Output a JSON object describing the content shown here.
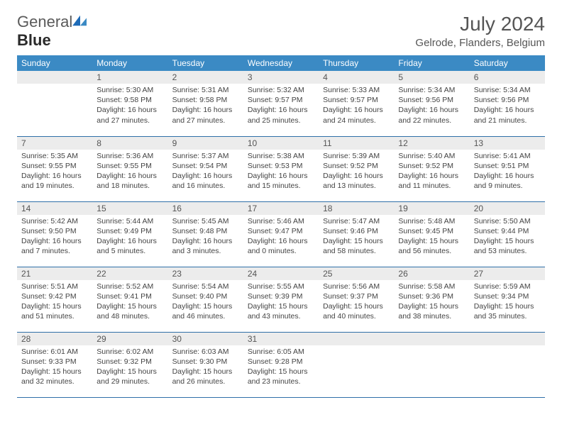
{
  "brand": {
    "part1": "General",
    "part2": "Blue"
  },
  "title": "July 2024",
  "location": "Gelrode, Flanders, Belgium",
  "colors": {
    "header_bg": "#3b8ac4",
    "header_text": "#ffffff",
    "row_divider": "#2f6fa8",
    "daynum_bg": "#ececec",
    "daynum_text": "#555555",
    "body_text": "#444444",
    "title_text": "#555555",
    "logo_accent": "#1e6bb8"
  },
  "weekdays": [
    "Sunday",
    "Monday",
    "Tuesday",
    "Wednesday",
    "Thursday",
    "Friday",
    "Saturday"
  ],
  "start_offset": 1,
  "days": [
    {
      "n": 1,
      "sunrise": "5:30 AM",
      "sunset": "9:58 PM",
      "daylight": "16 hours and 27 minutes."
    },
    {
      "n": 2,
      "sunrise": "5:31 AM",
      "sunset": "9:58 PM",
      "daylight": "16 hours and 27 minutes."
    },
    {
      "n": 3,
      "sunrise": "5:32 AM",
      "sunset": "9:57 PM",
      "daylight": "16 hours and 25 minutes."
    },
    {
      "n": 4,
      "sunrise": "5:33 AM",
      "sunset": "9:57 PM",
      "daylight": "16 hours and 24 minutes."
    },
    {
      "n": 5,
      "sunrise": "5:34 AM",
      "sunset": "9:56 PM",
      "daylight": "16 hours and 22 minutes."
    },
    {
      "n": 6,
      "sunrise": "5:34 AM",
      "sunset": "9:56 PM",
      "daylight": "16 hours and 21 minutes."
    },
    {
      "n": 7,
      "sunrise": "5:35 AM",
      "sunset": "9:55 PM",
      "daylight": "16 hours and 19 minutes."
    },
    {
      "n": 8,
      "sunrise": "5:36 AM",
      "sunset": "9:55 PM",
      "daylight": "16 hours and 18 minutes."
    },
    {
      "n": 9,
      "sunrise": "5:37 AM",
      "sunset": "9:54 PM",
      "daylight": "16 hours and 16 minutes."
    },
    {
      "n": 10,
      "sunrise": "5:38 AM",
      "sunset": "9:53 PM",
      "daylight": "16 hours and 15 minutes."
    },
    {
      "n": 11,
      "sunrise": "5:39 AM",
      "sunset": "9:52 PM",
      "daylight": "16 hours and 13 minutes."
    },
    {
      "n": 12,
      "sunrise": "5:40 AM",
      "sunset": "9:52 PM",
      "daylight": "16 hours and 11 minutes."
    },
    {
      "n": 13,
      "sunrise": "5:41 AM",
      "sunset": "9:51 PM",
      "daylight": "16 hours and 9 minutes."
    },
    {
      "n": 14,
      "sunrise": "5:42 AM",
      "sunset": "9:50 PM",
      "daylight": "16 hours and 7 minutes."
    },
    {
      "n": 15,
      "sunrise": "5:44 AM",
      "sunset": "9:49 PM",
      "daylight": "16 hours and 5 minutes."
    },
    {
      "n": 16,
      "sunrise": "5:45 AM",
      "sunset": "9:48 PM",
      "daylight": "16 hours and 3 minutes."
    },
    {
      "n": 17,
      "sunrise": "5:46 AM",
      "sunset": "9:47 PM",
      "daylight": "16 hours and 0 minutes."
    },
    {
      "n": 18,
      "sunrise": "5:47 AM",
      "sunset": "9:46 PM",
      "daylight": "15 hours and 58 minutes."
    },
    {
      "n": 19,
      "sunrise": "5:48 AM",
      "sunset": "9:45 PM",
      "daylight": "15 hours and 56 minutes."
    },
    {
      "n": 20,
      "sunrise": "5:50 AM",
      "sunset": "9:44 PM",
      "daylight": "15 hours and 53 minutes."
    },
    {
      "n": 21,
      "sunrise": "5:51 AM",
      "sunset": "9:42 PM",
      "daylight": "15 hours and 51 minutes."
    },
    {
      "n": 22,
      "sunrise": "5:52 AM",
      "sunset": "9:41 PM",
      "daylight": "15 hours and 48 minutes."
    },
    {
      "n": 23,
      "sunrise": "5:54 AM",
      "sunset": "9:40 PM",
      "daylight": "15 hours and 46 minutes."
    },
    {
      "n": 24,
      "sunrise": "5:55 AM",
      "sunset": "9:39 PM",
      "daylight": "15 hours and 43 minutes."
    },
    {
      "n": 25,
      "sunrise": "5:56 AM",
      "sunset": "9:37 PM",
      "daylight": "15 hours and 40 minutes."
    },
    {
      "n": 26,
      "sunrise": "5:58 AM",
      "sunset": "9:36 PM",
      "daylight": "15 hours and 38 minutes."
    },
    {
      "n": 27,
      "sunrise": "5:59 AM",
      "sunset": "9:34 PM",
      "daylight": "15 hours and 35 minutes."
    },
    {
      "n": 28,
      "sunrise": "6:01 AM",
      "sunset": "9:33 PM",
      "daylight": "15 hours and 32 minutes."
    },
    {
      "n": 29,
      "sunrise": "6:02 AM",
      "sunset": "9:32 PM",
      "daylight": "15 hours and 29 minutes."
    },
    {
      "n": 30,
      "sunrise": "6:03 AM",
      "sunset": "9:30 PM",
      "daylight": "15 hours and 26 minutes."
    },
    {
      "n": 31,
      "sunrise": "6:05 AM",
      "sunset": "9:28 PM",
      "daylight": "15 hours and 23 minutes."
    }
  ],
  "labels": {
    "sunrise_prefix": "Sunrise: ",
    "sunset_prefix": "Sunset: ",
    "daylight_prefix": "Daylight: "
  }
}
